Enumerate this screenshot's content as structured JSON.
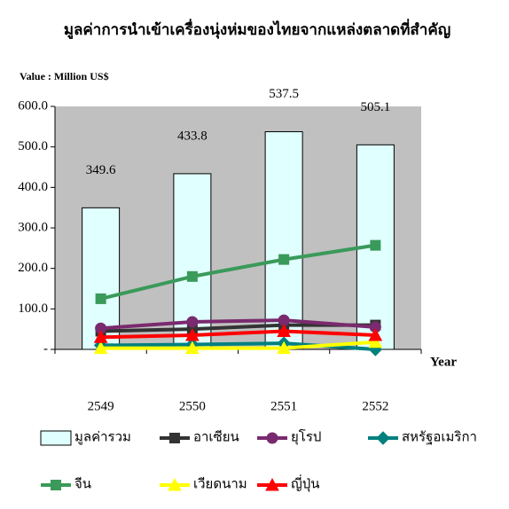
{
  "chart_data": {
    "type": "bar",
    "title": "มูลค่าการนำเข้าเครื่องนุ่งห่มของไทยจากแหล่งตลาดที่สำคัญ",
    "y_label": "Value : Million US$",
    "x_label": "Year",
    "categories": [
      "2549",
      "2550",
      "2551",
      "2552"
    ],
    "series": [
      {
        "name": "มูลค่ารวม",
        "type": "bar",
        "color": "#e0ffff",
        "values": [
          349.6,
          433.8,
          537.5,
          505.1
        ]
      },
      {
        "name": "อาเซียน",
        "type": "line",
        "marker": "square",
        "color": "#333333",
        "values": [
          45,
          50,
          60,
          60
        ]
      },
      {
        "name": "ยุโรป",
        "type": "line",
        "marker": "circle",
        "color": "#7a2a6e",
        "values": [
          52,
          68,
          72,
          55
        ]
      },
      {
        "name": "สหรัฐอเมริกา",
        "type": "line",
        "marker": "diamond",
        "color": "#00807f",
        "values": [
          10,
          12,
          15,
          0
        ]
      },
      {
        "name": "จีน",
        "type": "line",
        "marker": "square",
        "color": "#3a9a5a",
        "values": [
          125,
          180,
          222,
          257
        ]
      },
      {
        "name": "เวียดนาม",
        "type": "line",
        "marker": "triangle",
        "color": "#ffff00",
        "values": [
          3,
          3,
          3,
          18
        ]
      },
      {
        "name": "ญี่ปุ่น",
        "type": "line",
        "marker": "triangle",
        "color": "#ff0000",
        "values": [
          30,
          35,
          45,
          35
        ]
      }
    ],
    "ylim": [
      0,
      600
    ],
    "yticks": [
      {
        "value": 0,
        "label": "-"
      },
      {
        "value": 100,
        "label": "100.0"
      },
      {
        "value": 200,
        "label": "200.0"
      },
      {
        "value": 300,
        "label": "300.0"
      },
      {
        "value": 400,
        "label": "400.0"
      },
      {
        "value": 500,
        "label": "500.0"
      },
      {
        "value": 600,
        "label": "600.0"
      }
    ]
  }
}
